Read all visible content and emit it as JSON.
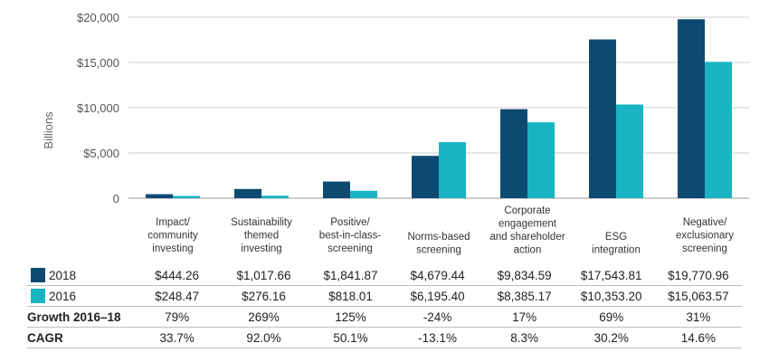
{
  "chart_data": {
    "type": "bar",
    "ylabel": "Billions",
    "ylim": [
      0,
      20000
    ],
    "yticks": [
      "0",
      "$5,000",
      "$10,000",
      "$15,000",
      "$20,000"
    ],
    "categories": [
      [
        "Impact/",
        "community",
        "investing"
      ],
      [
        "Sustainability",
        "themed",
        "investing"
      ],
      [
        "Positive/",
        "best-in-class-",
        "screening"
      ],
      [
        "Norms-based",
        "screening"
      ],
      [
        "Corporate",
        "engagement",
        "and shareholder",
        "action"
      ],
      [
        "ESG",
        "integration"
      ],
      [
        "Negative/",
        "exclusionary",
        "screening"
      ]
    ],
    "series": [
      {
        "name": "2018",
        "color": "#0d4a72",
        "values": [
          444.26,
          1017.66,
          1841.87,
          4679.44,
          9834.59,
          17543.81,
          19770.96
        ]
      },
      {
        "name": "2016",
        "color": "#19b4c2",
        "values": [
          248.47,
          276.16,
          818.01,
          6195.4,
          8385.17,
          10353.2,
          15063.57
        ]
      }
    ],
    "grid": true
  },
  "table": {
    "rows": [
      {
        "label": "2018",
        "swatch": "#0d4a72",
        "bold": false,
        "cells": [
          "$444.26",
          "$1,017.66",
          "$1,841.87",
          "$4,679.44",
          "$9,834.59",
          "$17,543.81",
          "$19,770.96"
        ]
      },
      {
        "label": "2016",
        "swatch": "#19b4c2",
        "bold": false,
        "cells": [
          "$248.47",
          "$276.16",
          "$818.01",
          "$6,195.40",
          "$8,385.17",
          "$10,353.20",
          "$15,063.57"
        ]
      },
      {
        "label": "Growth 2016–18",
        "swatch": null,
        "bold": true,
        "cells": [
          "79%",
          "269%",
          "125%",
          "-24%",
          "17%",
          "69%",
          "31%"
        ]
      },
      {
        "label": "CAGR",
        "swatch": null,
        "bold": true,
        "cells": [
          "33.7%",
          "92.0%",
          "50.1%",
          "-13.1%",
          "8.3%",
          "30.2%",
          "14.6%"
        ]
      }
    ]
  }
}
